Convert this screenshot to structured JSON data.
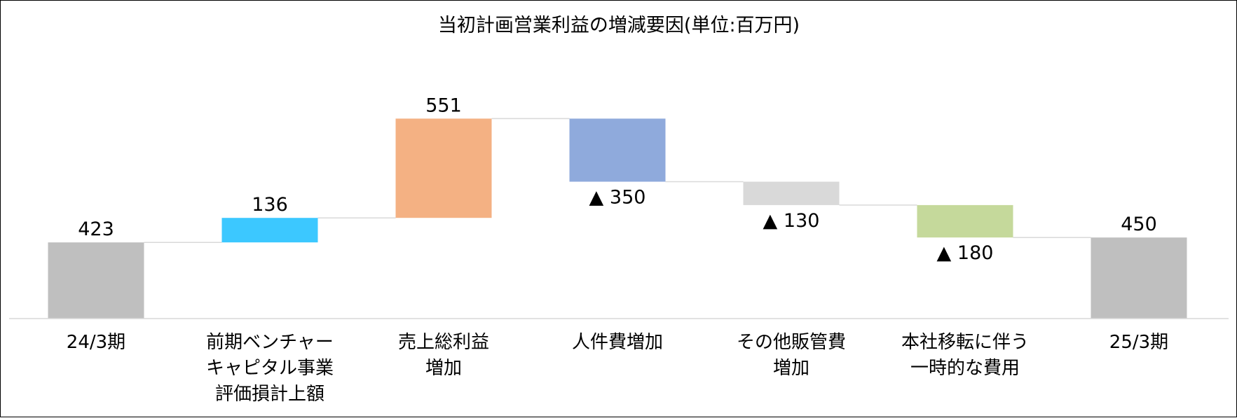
{
  "chart_data": {
    "type": "bar",
    "subtype": "waterfall",
    "title": "当初計画営業利益の増減要因(単位:百万円)",
    "xlabel": "",
    "ylabel": "",
    "ylim": [
      0,
      1000
    ],
    "grid": false,
    "legend": "none",
    "categories": [
      "24/3期",
      "前期ベンチャーキャピタル事業評価損計上額",
      "売上総利益増加",
      "人件費増加",
      "その他販管費増加",
      "本社移転に伴う一時的な費用",
      "25/3期"
    ],
    "category_lines": [
      [
        "24/3期"
      ],
      [
        "前期ベンチャー",
        "キャピタル事業",
        "評価損計上額"
      ],
      [
        "売上総利益",
        "増加"
      ],
      [
        "人件費増加"
      ],
      [
        "その他販管費",
        "増加"
      ],
      [
        "本社移転に伴う",
        "一時的な費用"
      ],
      [
        "25/3期"
      ]
    ],
    "values": [
      423,
      136,
      551,
      -350,
      -130,
      -180,
      450
    ],
    "kinds": [
      "total",
      "delta",
      "delta",
      "delta",
      "delta",
      "delta",
      "total"
    ],
    "data_labels": [
      "423",
      "136",
      "551",
      "▲ 350",
      "▲ 130",
      "▲ 180",
      "450"
    ],
    "colors": [
      "#bfbfbf",
      "#3cc8ff",
      "#f4b183",
      "#8faadc",
      "#d9d9d9",
      "#c5d99b",
      "#bfbfbf"
    ],
    "connector_color": "#d9d9d9",
    "axis_color": "#d9d9d9"
  }
}
